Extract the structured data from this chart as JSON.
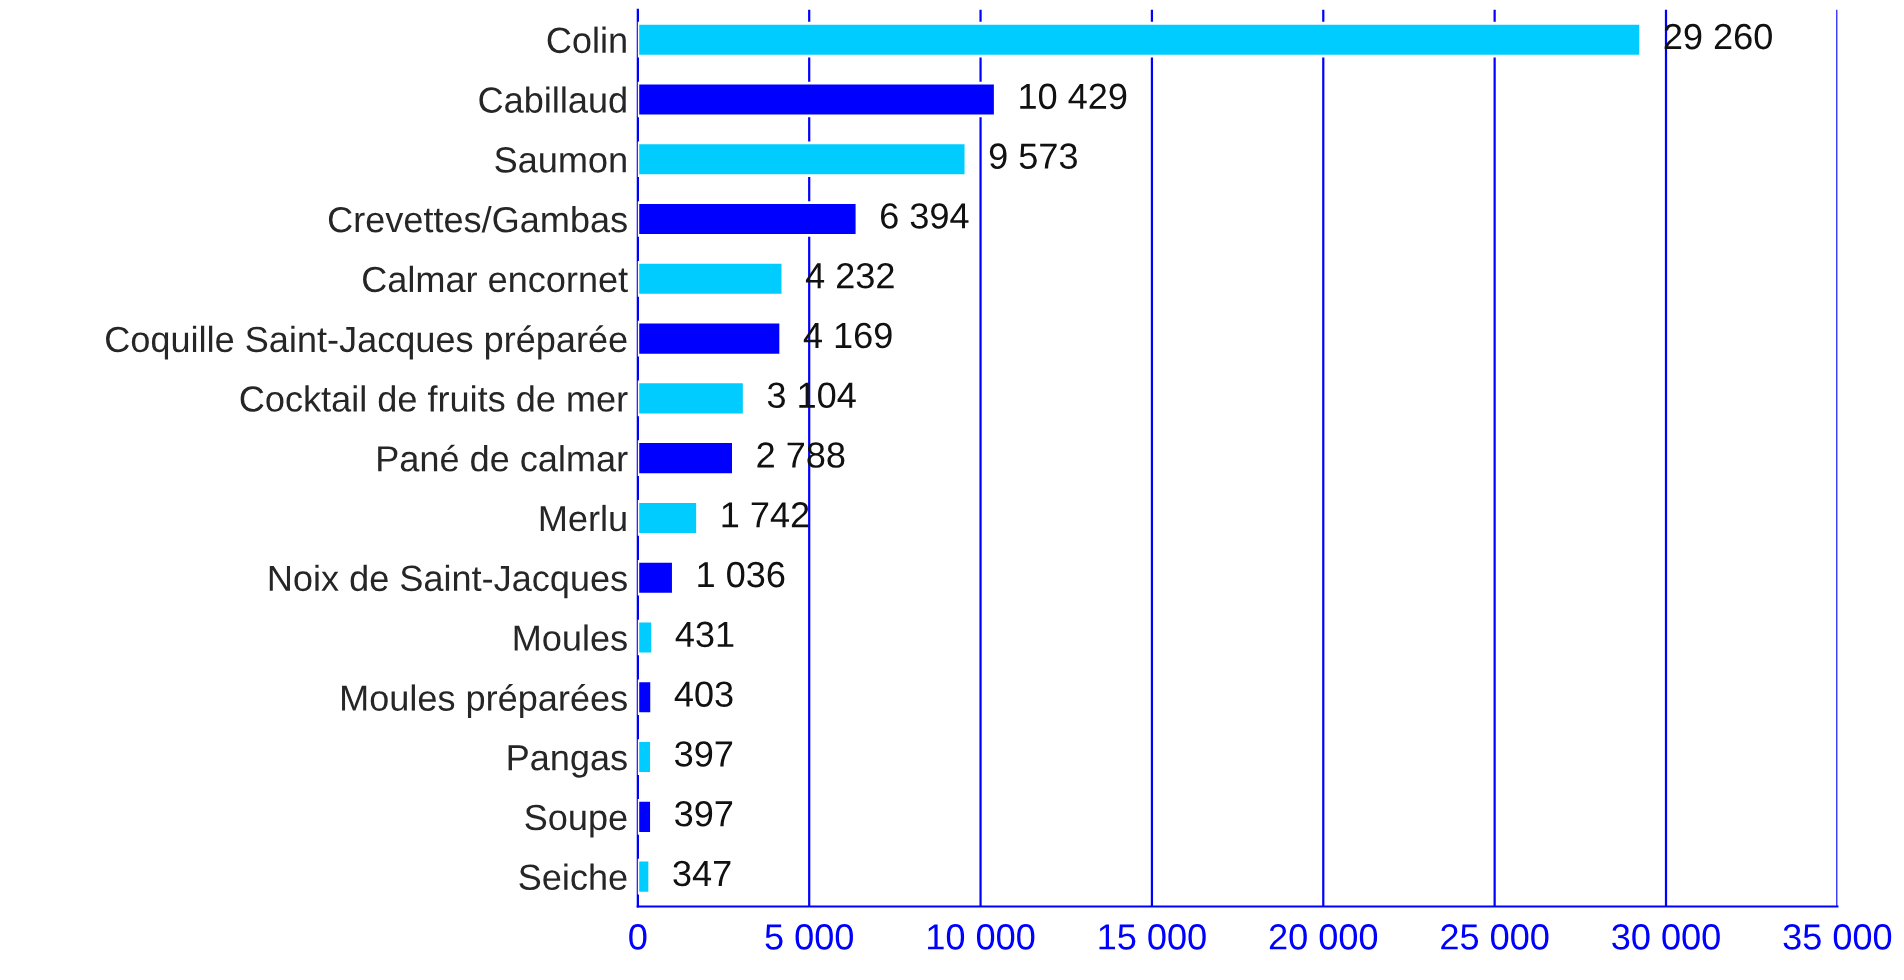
{
  "chart_data": {
    "type": "bar",
    "orientation": "horizontal",
    "categories": [
      "Colin",
      "Cabillaud",
      "Saumon",
      "Crevettes/Gambas",
      "Calmar encornet",
      "Coquille Saint-Jacques préparée",
      "Cocktail de fruits de mer",
      "Pané de calmar",
      "Merlu",
      "Noix de Saint-Jacques",
      "Moules",
      "Moules préparées",
      "Pangas",
      "Soupe",
      "Seiche"
    ],
    "values": [
      29260,
      10429,
      9573,
      6394,
      4232,
      4169,
      3104,
      2788,
      1742,
      1036,
      431,
      403,
      397,
      397,
      347
    ],
    "colors": [
      "#00ccff",
      "#0000ff",
      "#00ccff",
      "#0000ff",
      "#00ccff",
      "#0000ff",
      "#00ccff",
      "#0000ff",
      "#00ccff",
      "#0000ff",
      "#00ccff",
      "#0000ff",
      "#00ccff",
      "#0000ff",
      "#00ccff"
    ],
    "value_labels": [
      "29 260",
      "10 429",
      "9 573",
      "6 394",
      "4 232",
      "4 169",
      "3 104",
      "2 788",
      "1 742",
      "1 036",
      "431",
      "403",
      "397",
      "397",
      "347"
    ],
    "xlim": [
      0,
      35000
    ],
    "xticks": [
      0,
      {
        "value": 5000,
        "label": "5 000"
      },
      {
        "value": 10000,
        "label": "10 000"
      },
      {
        "value": 15000,
        "label": "15 000"
      },
      {
        "value": 20000,
        "label": "20 000"
      },
      {
        "value": 25000,
        "label": "25 000"
      },
      {
        "value": 30000,
        "label": "30 000"
      },
      {
        "value": 35000,
        "label": "35 000"
      }
    ],
    "grid": "x",
    "legend": false
  }
}
